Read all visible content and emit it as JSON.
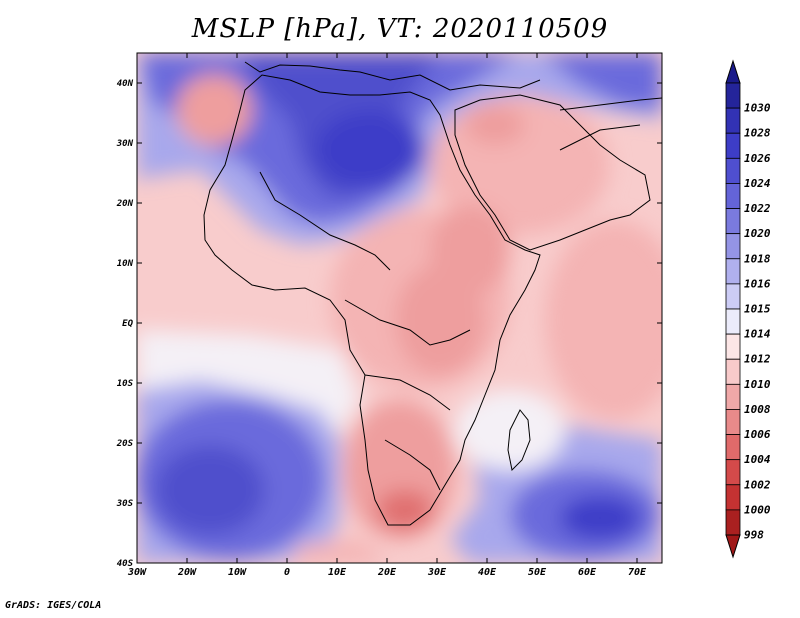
{
  "title": "MSLP [hPa], VT: 2020110509",
  "credit": "GrADS: IGES/COLA",
  "variable": "MSLP",
  "units": "hPa",
  "valid_time": "2020110509",
  "map": {
    "lon_range": [
      -30,
      75
    ],
    "lat_range": [
      -40,
      45
    ],
    "x_ticks": [
      "30W",
      "20W",
      "10W",
      "0",
      "10E",
      "20E",
      "30E",
      "40E",
      "50E",
      "60E",
      "70E"
    ],
    "y_ticks": [
      "40N",
      "30N",
      "20N",
      "10N",
      "EQ",
      "10S",
      "20S",
      "30S",
      "40S"
    ],
    "x_tick_values": [
      -30,
      -20,
      -10,
      0,
      10,
      20,
      30,
      40,
      50,
      60,
      70
    ],
    "y_tick_values": [
      40,
      30,
      20,
      10,
      0,
      -10,
      -20,
      -30,
      -40
    ]
  },
  "colorbar": {
    "levels": [
      "1030",
      "1028",
      "1026",
      "1024",
      "1022",
      "1020",
      "1018",
      "1016",
      "1015",
      "1014",
      "1012",
      "1010",
      "1008",
      "1006",
      "1004",
      "1002",
      "1000",
      "998"
    ],
    "colors": [
      "#24249a",
      "#3232b4",
      "#3d3dc7",
      "#4f4fd0",
      "#6464d8",
      "#7a7ade",
      "#9494e5",
      "#b0b0ee",
      "#ccccf5",
      "#ececfb",
      "#fce6e6",
      "#f8caca",
      "#f0a8a8",
      "#e88a8a",
      "#e06a6a",
      "#d44a4a",
      "#c43232",
      "#aa2020"
    ],
    "top_arrow_color": "#1a1a8a",
    "bottom_arrow_color": "#a01818"
  },
  "colors": {
    "strong_high": "#3e3ec8",
    "high": "#6a6adc",
    "light_high": "#a8a8ec",
    "neutral": "#f4f0f6",
    "light_low": "#f8cccc",
    "low": "#ee9e9e",
    "deep_low": "#e07070",
    "coast": "#000000"
  }
}
